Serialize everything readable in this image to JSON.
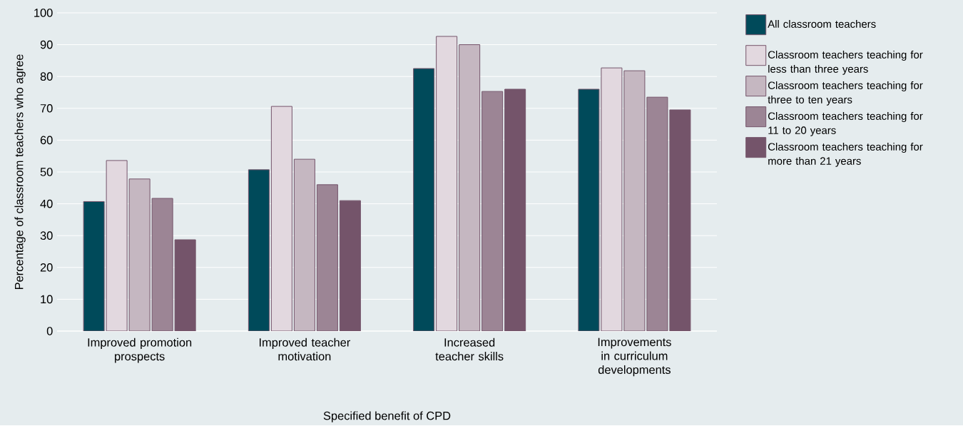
{
  "chart_data": {
    "type": "bar",
    "xlabel": "Specified benefit of CPD",
    "ylabel": "Percentage of classroom teachers who agree",
    "categories": [
      "Improved promotion prospects",
      "Improved teacher motivation",
      "Increased teacher skills",
      "Improvements in curriculum developments"
    ],
    "series": [
      {
        "name": "All classroom teachers",
        "color": "#004a5a",
        "values": [
          40.7,
          50.7,
          82.5,
          76
        ]
      },
      {
        "name": "Classroom teachers teaching for less than three years",
        "color": "#e2d8df",
        "values": [
          53.6,
          70.6,
          92.6,
          82.7
        ]
      },
      {
        "name": "Classroom teachers teaching for three to ten years",
        "color": "#c5b7c1",
        "values": [
          47.8,
          54,
          90,
          81.8
        ]
      },
      {
        "name": "Classroom teachers teaching for 11 to 20 years",
        "color": "#9c8595",
        "values": [
          41.7,
          46,
          75.3,
          73.5
        ]
      },
      {
        "name": "Classroom teachers teaching for more than 21 years",
        "color": "#74546a",
        "values": [
          28.7,
          41,
          76,
          69.5
        ]
      }
    ],
    "ylim": [
      0,
      100
    ],
    "yticks": [
      0,
      10,
      20,
      30,
      40,
      50,
      60,
      70,
      80,
      90,
      100
    ],
    "grid": "y",
    "legend": "right"
  }
}
